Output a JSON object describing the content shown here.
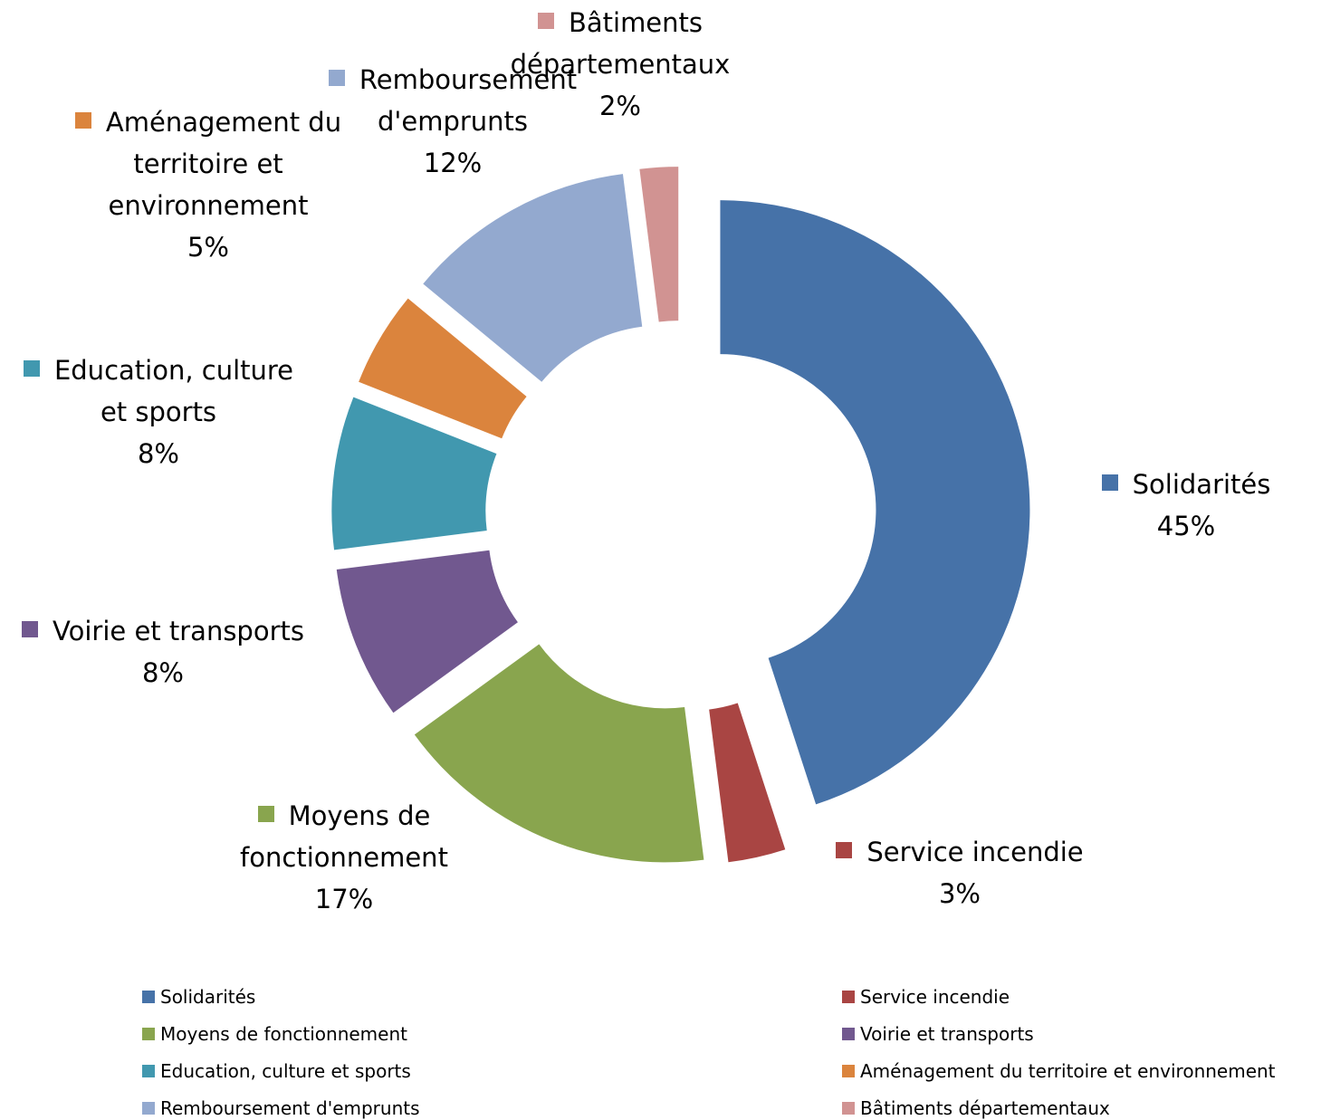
{
  "chart_data": {
    "type": "donut",
    "categories": [
      "Solidarités",
      "Service incendie",
      "Moyens de fonctionnement",
      "Voirie et transports",
      "Education, culture et sports",
      "Aménagement du territoire et environnement",
      "Remboursement d'emprunts",
      "Bâtiments départementaux"
    ],
    "values": [
      45,
      3,
      17,
      8,
      8,
      5,
      12,
      2
    ],
    "value_labels": [
      "45%",
      "3%",
      "17%",
      "8%",
      "8%",
      "5%",
      "12%",
      "2%"
    ],
    "colors": [
      "#4672a8",
      "#a94543",
      "#89a54e",
      "#71588f",
      "#4198af",
      "#db843d",
      "#93a9cf",
      "#d19392"
    ],
    "legend": "bottom"
  }
}
